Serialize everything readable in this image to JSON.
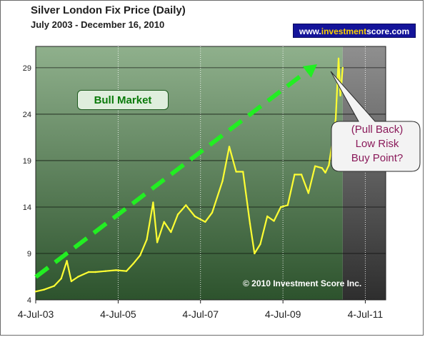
{
  "chart_data": {
    "type": "line",
    "title": "Silver London Fix Price (Daily)",
    "subtitle": "July 2003 - December 16, 2010",
    "xlabel": "",
    "ylabel": "",
    "x_ticks": [
      "4-Jul-03",
      "4-Jul-05",
      "4-Jul-07",
      "4-Jul-09",
      "4-Jul-11"
    ],
    "x_range": [
      "2003-07-04",
      "2012-01-01"
    ],
    "y_ticks": [
      4,
      9,
      14,
      19,
      24,
      29
    ],
    "ylim": [
      4,
      31.3
    ],
    "grid": true,
    "legend": "none",
    "series": [
      {
        "color": "#ffff33",
        "x": [
          "2003-07-04",
          "2003-09-15",
          "2003-12-15",
          "2004-02-15",
          "2004-04-05",
          "2004-05-15",
          "2004-07-15",
          "2004-10-15",
          "2004-12-15",
          "2005-03-15",
          "2005-06-15",
          "2005-09-15",
          "2005-11-15",
          "2006-01-15",
          "2006-03-15",
          "2006-05-10",
          "2006-06-15",
          "2006-08-15",
          "2006-10-15",
          "2006-12-15",
          "2007-02-25",
          "2007-05-15",
          "2007-08-15",
          "2007-10-15",
          "2008-01-15",
          "2008-03-15",
          "2008-05-15",
          "2008-07-15",
          "2008-09-15",
          "2008-10-25",
          "2008-12-15",
          "2009-02-15",
          "2009-04-15",
          "2009-06-15",
          "2009-08-15",
          "2009-10-15",
          "2009-12-15",
          "2010-02-15",
          "2010-04-15",
          "2010-06-15",
          "2010-07-15",
          "2010-08-15",
          "2010-09-15",
          "2010-10-15",
          "2010-11-09",
          "2010-11-25",
          "2010-12-16"
        ],
        "values": [
          4.9,
          5.1,
          5.5,
          6.3,
          8.2,
          6.0,
          6.5,
          7.0,
          7.0,
          7.1,
          7.2,
          7.1,
          7.9,
          8.8,
          10.5,
          14.5,
          10.2,
          12.4,
          11.3,
          13.2,
          14.2,
          13.0,
          12.4,
          13.4,
          16.8,
          20.5,
          17.8,
          17.8,
          12.2,
          9.0,
          10.0,
          13.0,
          12.5,
          14.0,
          14.2,
          17.5,
          17.5,
          15.5,
          18.4,
          18.2,
          17.7,
          18.5,
          21.0,
          23.5,
          30.0,
          26.0,
          29.0
        ]
      }
    ],
    "annotations": {
      "bull_market": "Bull Market",
      "pullback_lines": [
        "(Pull Back)",
        "Low Risk",
        "Buy Point?"
      ],
      "copyright": "© 2010 Investment Score Inc."
    },
    "colors": {
      "plot_bg_top": "#8fb08c",
      "plot_bg_bottom": "#2d532d",
      "shaded_future_top": "#8f8f8f",
      "shaded_future_bottom": "#2e2e2e",
      "trend_arrow": "#22ee22",
      "line": "#ffff33"
    }
  },
  "header": {
    "site_prefix": "www.",
    "site_highlight": "investment",
    "site_suffix": "score.com"
  }
}
